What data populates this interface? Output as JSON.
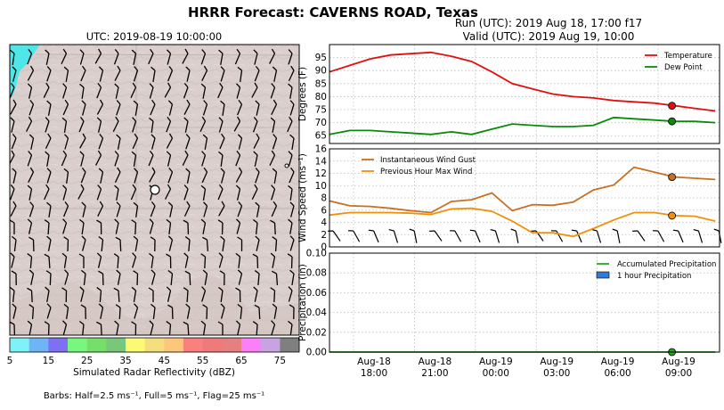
{
  "title": "HRRR Forecast: CAVERNS ROAD, Texas",
  "map": {
    "utc_label": "UTC: 2019-08-19 10:00:00",
    "colorbar_label": "Simulated Radar Reflectivity (dBZ)",
    "colorbar_ticks": [
      "5",
      "15",
      "25",
      "35",
      "45",
      "55",
      "65",
      "75"
    ],
    "colorbar_colors": [
      "#7ef2f8",
      "#6fb5f6",
      "#7f6ff2",
      "#77f77d",
      "#76df6c",
      "#78c77a",
      "#fbfa72",
      "#f5df7c",
      "#fcc77b",
      "#f9807f",
      "#ee7a79",
      "#e57f80",
      "#fa7ff9",
      "#c7a4e1",
      "#7f7f7f"
    ],
    "barbs_label": "Barbs: Half=2.5 ms⁻¹, Full=5 ms⁻¹, Flag=25 ms⁻¹"
  },
  "run_label": "Run (UTC): 2019 Aug 18, 17:00 f17",
  "valid_label": "Valid (UTC): 2019 Aug 19, 10:00",
  "chart_data": [
    {
      "type": "line",
      "ylabel": "Degrees (F)",
      "ylim": [
        62,
        100
      ],
      "yticks": [
        65,
        70,
        75,
        80,
        85,
        90,
        95
      ],
      "grid": true,
      "legend": "top-right",
      "series": [
        {
          "name": "Temperature",
          "color": "#e01010",
          "values": [
            89.5,
            92,
            94.5,
            96,
            96.5,
            97,
            95.5,
            93.5,
            89.5,
            85,
            83,
            81,
            80,
            79.5,
            78.5,
            78,
            77.5,
            76.5,
            75.5,
            74.5
          ]
        },
        {
          "name": "Dew Point",
          "color": "#0a8a0a",
          "values": [
            65.5,
            67,
            67,
            66.5,
            66,
            65.5,
            66.5,
            65.5,
            67.5,
            69.5,
            69,
            68.5,
            68.5,
            69,
            72,
            71.5,
            71,
            70.5,
            70.5,
            70
          ]
        }
      ]
    },
    {
      "type": "line",
      "ylabel": "Wind Speed (ms⁻¹)",
      "ylim": [
        0,
        16
      ],
      "yticks": [
        0,
        2,
        4,
        6,
        8,
        10,
        12,
        14,
        16
      ],
      "grid": true,
      "legend": "top-left",
      "series": [
        {
          "name": "Instantaneous Wind Gust",
          "color": "#c87020",
          "values": [
            7.5,
            6.7,
            6.6,
            6.3,
            5.9,
            5.6,
            7.4,
            7.7,
            8.8,
            5.9,
            6.9,
            6.8,
            7.3,
            9.3,
            10.1,
            13.0,
            12.2,
            11.4,
            11.2,
            11.0
          ]
        },
        {
          "name": "Previous Hour Max Wind",
          "color": "#f0900a",
          "values": [
            5.2,
            5.6,
            5.6,
            5.6,
            5.5,
            5.3,
            6.2,
            6.3,
            5.8,
            4.2,
            2.3,
            2.3,
            1.7,
            3.0,
            4.4,
            5.6,
            5.6,
            5.1,
            5.0,
            4.2
          ]
        }
      ]
    },
    {
      "type": "line",
      "xlabel": "",
      "ylabel": "Precipitation (in)",
      "ylim": [
        0,
        0.1
      ],
      "yticks": [
        "0.00",
        "0.02",
        "0.04",
        "0.06",
        "0.08",
        "0.10"
      ],
      "grid": true,
      "legend": "top-right",
      "series": [
        {
          "name": "Accumulated Precipitation",
          "color": "#22aa22",
          "values": [
            0,
            0,
            0,
            0,
            0,
            0,
            0,
            0,
            0,
            0,
            0,
            0,
            0,
            0,
            0,
            0,
            0,
            0,
            0,
            0
          ]
        },
        {
          "name": "1 hour Precipitation",
          "color": "#2f7bd6",
          "values": [
            0,
            0,
            0,
            0,
            0,
            0,
            0,
            0,
            0,
            0,
            0,
            0,
            0,
            0,
            0,
            0,
            0,
            0,
            0,
            0
          ]
        }
      ],
      "xtick_labels": [
        {
          "date": "Aug-18",
          "time": "18:00"
        },
        {
          "date": "Aug-18",
          "time": "21:00"
        },
        {
          "date": "Aug-19",
          "time": "00:00"
        },
        {
          "date": "Aug-19",
          "time": "03:00"
        },
        {
          "date": "Aug-19",
          "time": "06:00"
        },
        {
          "date": "Aug-19",
          "time": "09:00"
        }
      ]
    }
  ],
  "valid_hour_index": 16
}
